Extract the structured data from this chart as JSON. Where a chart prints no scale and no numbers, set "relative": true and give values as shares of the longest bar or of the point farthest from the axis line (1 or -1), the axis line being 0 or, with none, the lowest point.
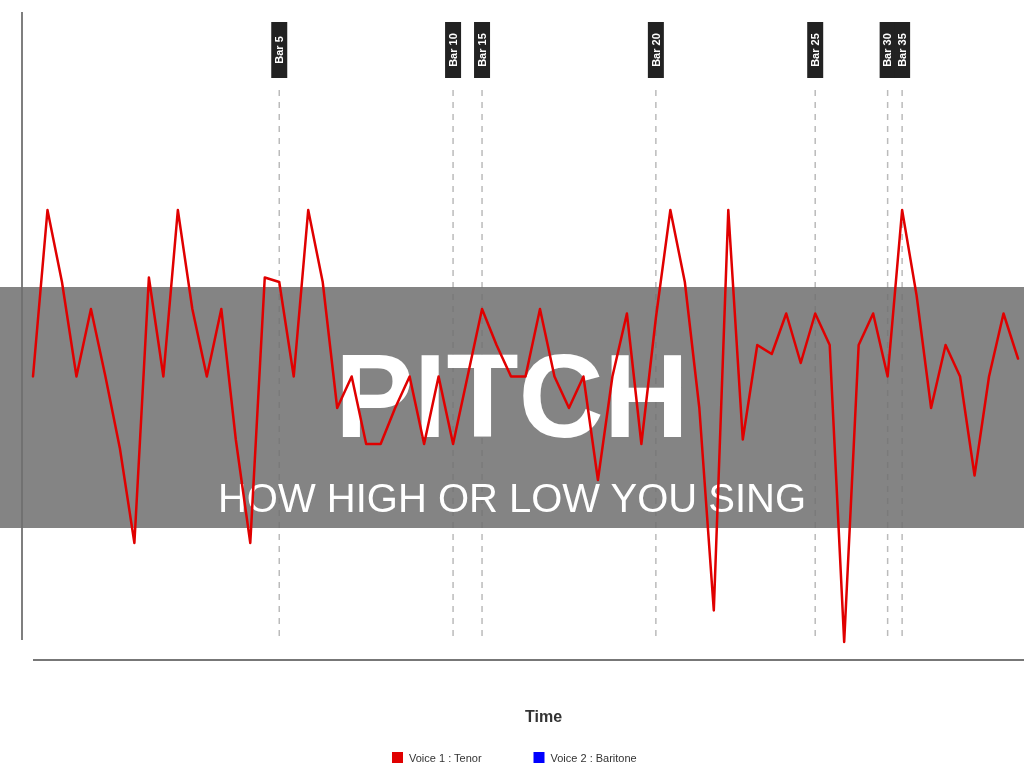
{
  "chart_data": {
    "type": "line",
    "title": "PITCH",
    "subtitle": "HOW HIGH OR LOW YOU SING",
    "xlabel": "Time",
    "relative": true,
    "tick_labels": "x",
    "legend": "bottom",
    "marker": "none",
    "line_style": "solid",
    "grid": "x",
    "categories": [
      null,
      null,
      null,
      null,
      null,
      null,
      null,
      null,
      null,
      null,
      null,
      null,
      null,
      null,
      null,
      null,
      null,
      "Bar 5",
      null,
      null,
      null,
      null,
      null,
      null,
      null,
      null,
      null,
      null,
      null,
      "Bar 10",
      null,
      "Bar 15",
      null,
      null,
      null,
      null,
      null,
      null,
      null,
      null,
      null,
      null,
      null,
      "Bar 20",
      null,
      null,
      null,
      null,
      null,
      null,
      null,
      null,
      null,
      null,
      "Bar 25",
      null,
      null,
      null,
      null,
      "Bar 30",
      "Bar 35",
      null,
      null,
      null,
      null,
      null,
      null,
      null,
      null
    ],
    "series": [
      {
        "name": "Voice 1 : Tenor",
        "color": "#e00000",
        "values": [
          0.63,
          1.0,
          0.84,
          0.63,
          0.78,
          0.63,
          0.47,
          0.26,
          0.85,
          0.63,
          1.0,
          0.78,
          0.63,
          0.78,
          0.49,
          0.26,
          0.85,
          0.84,
          0.63,
          1.0,
          0.84,
          0.56,
          0.63,
          0.48,
          0.48,
          0.56,
          0.63,
          0.48,
          0.63,
          0.48,
          0.63,
          0.78,
          0.7,
          0.63,
          0.63,
          0.78,
          0.63,
          0.56,
          0.63,
          0.4,
          0.63,
          0.77,
          0.48,
          0.76,
          1.0,
          0.84,
          0.56,
          0.11,
          1.0,
          0.49,
          0.7,
          0.68,
          0.77,
          0.66,
          0.77,
          0.7,
          0.04,
          0.7,
          0.77,
          0.63,
          1.0,
          0.81,
          0.56,
          0.7,
          0.63,
          0.41,
          0.63,
          0.77,
          0.67
        ]
      },
      {
        "name": "Voice 2 : Baritone",
        "color": "#0000ff",
        "values": [
          null,
          null,
          null,
          null,
          null,
          null,
          null,
          null,
          null,
          null,
          null,
          null,
          null,
          null,
          null,
          null,
          null,
          null,
          null,
          null,
          null,
          null,
          null,
          null,
          null,
          null,
          null,
          null,
          null,
          null,
          null,
          null,
          null,
          null,
          null,
          null,
          null,
          null,
          null,
          null,
          null,
          null,
          null,
          null,
          null,
          null,
          null,
          null,
          null,
          null,
          null,
          null,
          null,
          null,
          null,
          null,
          null,
          null,
          null,
          null,
          null,
          null,
          null,
          null,
          null,
          null,
          null,
          null,
          null
        ]
      }
    ]
  }
}
